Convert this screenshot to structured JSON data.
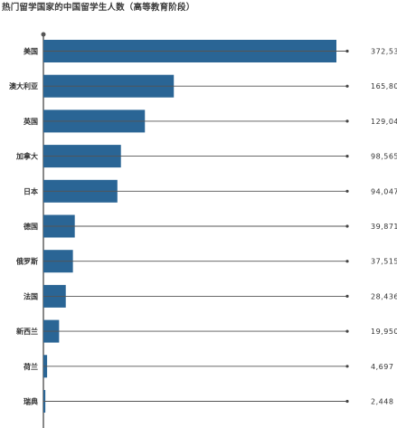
{
  "chart_data": {
    "type": "bar",
    "orientation": "horizontal",
    "title": "热门留学国家的中国留学生人数（高等教育阶段）",
    "categories": [
      "美国",
      "澳大利亚",
      "英国",
      "加拿大",
      "日本",
      "德国",
      "俄罗斯",
      "法国",
      "新西兰",
      "荷兰",
      "瑞典"
    ],
    "values": [
      372532,
      165809,
      129045,
      98565,
      94047,
      39871,
      37515,
      28436,
      19950,
      4697,
      2448
    ],
    "value_labels": [
      "372,532",
      "165,809",
      "129,045",
      "98,565",
      "94,047",
      "39,871",
      "37,515",
      "28,436",
      "19,950",
      "4,697",
      "2,448"
    ],
    "xlim": [
      0,
      372532
    ],
    "grid": false,
    "colors": {
      "bar": "#2a6595",
      "leader_line": "#555555",
      "dot": "#444444",
      "text": "#333333"
    }
  }
}
